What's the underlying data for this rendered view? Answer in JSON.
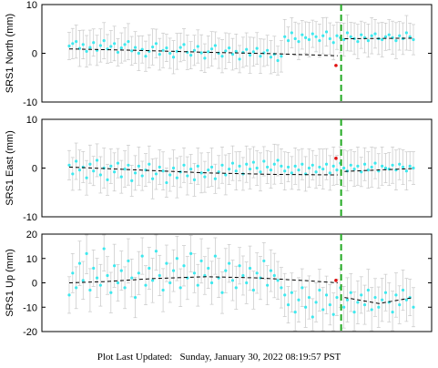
{
  "footer": {
    "label": "Plot Last Updated:",
    "value": "Sunday, January 30, 2022 08:19:57 PST"
  },
  "colors": {
    "points": "#3ee8ee",
    "errorbars": "#c8c8c8",
    "model": "#000000",
    "event_line": "#22aa22",
    "highlight": "#e01010"
  },
  "chart_data": [
    {
      "type": "scatter",
      "ylabel": "SRS1 North (mm)",
      "ylim": [
        -10,
        10
      ],
      "yticks": [
        -10,
        0,
        10
      ],
      "xlabel": "",
      "x_tick_labels": [],
      "event_x": 0.79,
      "series": [
        {
          "values": [
            1.5,
            2.0,
            2.4,
            1.0,
            1.8,
            0.4,
            1.2,
            2.2,
            0.6,
            1.6,
            2.6,
            0.9,
            1.4,
            2.0,
            0.2,
            1.1,
            1.8,
            2.4,
            0.5,
            1.2,
            0.0,
            0.8,
            -0.6,
            0.4,
            1.3,
            2.0,
            -0.2,
            0.6,
            1.1,
            0.0,
            -0.8,
            0.4,
            1.2,
            1.8,
            0.2,
            -0.4,
            0.6,
            1.4,
            0.1,
            -1.0,
            0.3,
            0.9,
            1.6,
            0.0,
            -0.6,
            0.5,
            1.1,
            -0.2,
            0.4,
            -1.2,
            0.2,
            0.8,
            -0.4,
            0.3,
            1.0,
            -0.6,
            0.1,
            0.6,
            -0.8,
            -0.2,
            -1.5,
            -0.6,
            3.4,
            2.6,
            4.2,
            3.0,
            2.4,
            3.8,
            3.2,
            2.8,
            4.0,
            3.4,
            2.6,
            3.6,
            4.4,
            3.0,
            2.2,
            3.6,
            3.2,
            2.8,
            4.2,
            3.4,
            3.0,
            2.4,
            3.8,
            3.2,
            2.6,
            3.6,
            4.0,
            3.0,
            2.8,
            3.4,
            3.8,
            3.2,
            2.6,
            3.6,
            3.0,
            4.2,
            3.4,
            2.8
          ]
        }
      ],
      "model": {
        "pre": [
          [
            0.0,
            0.9
          ],
          [
            0.2,
            0.6
          ],
          [
            0.4,
            0.2
          ],
          [
            0.6,
            -0.1
          ],
          [
            0.78,
            -0.5
          ]
        ],
        "post": [
          [
            0.8,
            3.0
          ],
          [
            1.0,
            3.1
          ]
        ]
      },
      "highlight": [
        [
          0.775,
          -2.5
        ]
      ]
    },
    {
      "type": "scatter",
      "ylabel": "SRS1 East (mm)",
      "ylim": [
        -10,
        10
      ],
      "yticks": [
        -10,
        0,
        10
      ],
      "xlabel": "",
      "x_tick_labels": [],
      "event_x": 0.79,
      "series": [
        {
          "values": [
            0.6,
            -1.2,
            1.4,
            -0.4,
            0.2,
            -2.0,
            0.8,
            -0.6,
            1.6,
            -1.4,
            0.0,
            -2.4,
            0.4,
            -0.8,
            1.0,
            -1.8,
            -0.2,
            0.6,
            -2.6,
            -1.0,
            0.4,
            -1.6,
            -0.4,
            0.8,
            -2.2,
            -1.2,
            0.2,
            -0.6,
            -3.0,
            -1.4,
            0.0,
            -2.0,
            -0.8,
            0.6,
            -1.6,
            -0.2,
            -2.4,
            0.4,
            -1.0,
            -1.8,
            -0.4,
            0.2,
            -2.2,
            -0.8,
            0.6,
            -1.4,
            -0.2,
            1.0,
            -0.6,
            0.4,
            -1.2,
            0.8,
            -0.2,
            1.2,
            0.0,
            -0.8,
            1.4,
            0.2,
            -0.4,
            0.8,
            1.6,
            0.4,
            -0.6,
            0.2,
            -1.0,
            0.4,
            -0.4,
            0.8,
            -1.2,
            0.0,
            0.6,
            -0.8,
            0.2,
            -0.2,
            0.8,
            -1.0,
            0.4,
            -0.4,
            1.0,
            0.0,
            -0.6,
            0.6,
            -0.2,
            0.4,
            -0.8,
            0.8,
            -0.4,
            0.2,
            1.0,
            -0.6,
            0.4,
            0.0,
            -0.2,
            0.6,
            -0.4,
            0.8,
            0.2,
            -0.6,
            0.4,
            0.0
          ]
        }
      ],
      "model": {
        "pre": [
          [
            0.0,
            0.2
          ],
          [
            0.2,
            -0.4
          ],
          [
            0.4,
            -1.0
          ],
          [
            0.6,
            -1.3
          ],
          [
            0.78,
            -1.4
          ]
        ],
        "post": [
          [
            0.8,
            -0.7
          ],
          [
            1.0,
            -0.1
          ]
        ]
      },
      "highlight": [
        [
          0.775,
          2.0
        ]
      ]
    },
    {
      "type": "scatter",
      "ylabel": "SRS1 Up (mm)",
      "ylim": [
        -20,
        20
      ],
      "yticks": [
        -20,
        -10,
        0,
        10,
        20
      ],
      "xlabel": "",
      "x_tick_labels": [],
      "event_x": 0.79,
      "series": [
        {
          "values": [
            -5.0,
            4.0,
            -2.0,
            8.0,
            1.0,
            12.0,
            -3.0,
            6.0,
            2.0,
            -1.0,
            14.0,
            3.0,
            -4.0,
            7.0,
            0.0,
            5.0,
            -2.0,
            9.0,
            2.0,
            -6.0,
            4.0,
            11.0,
            -1.0,
            6.0,
            1.0,
            13.0,
            3.0,
            -3.0,
            8.0,
            0.0,
            5.0,
            10.0,
            -2.0,
            7.0,
            2.0,
            12.0,
            4.0,
            -1.0,
            9.0,
            3.0,
            6.0,
            0.0,
            11.0,
            2.0,
            -4.0,
            5.0,
            8.0,
            1.0,
            -2.0,
            7.0,
            3.0,
            0.0,
            6.0,
            -3.0,
            4.0,
            2.0,
            9.0,
            -1.0,
            5.0,
            3.0,
            1.0,
            -2.0,
            -5.0,
            -9.0,
            -4.0,
            -12.0,
            -7.0,
            -2.0,
            -10.0,
            -6.0,
            -14.0,
            -8.0,
            -3.0,
            -11.0,
            -5.0,
            -9.0,
            -13.0,
            -6.0,
            -2.0,
            -10.0,
            -7.0,
            -4.0,
            -12.0,
            -8.0,
            -5.0,
            -9.0,
            -3.0,
            -11.0,
            -6.0,
            -10.0,
            -7.0,
            -4.0,
            -8.0,
            -12.0,
            -5.0,
            -9.0,
            -3.0,
            -7.0,
            -6.0,
            -10.0
          ]
        }
      ],
      "model": {
        "pre": [
          [
            0.0,
            0.0
          ],
          [
            0.1,
            0.5
          ],
          [
            0.25,
            1.8
          ],
          [
            0.4,
            2.5
          ],
          [
            0.55,
            2.0
          ],
          [
            0.7,
            0.8
          ],
          [
            0.78,
            0.0
          ]
        ],
        "post": [
          [
            0.8,
            -6.0
          ],
          [
            0.9,
            -8.5
          ],
          [
            1.0,
            -6.0
          ]
        ]
      },
      "highlight": [
        [
          0.775,
          1.0
        ]
      ]
    }
  ]
}
